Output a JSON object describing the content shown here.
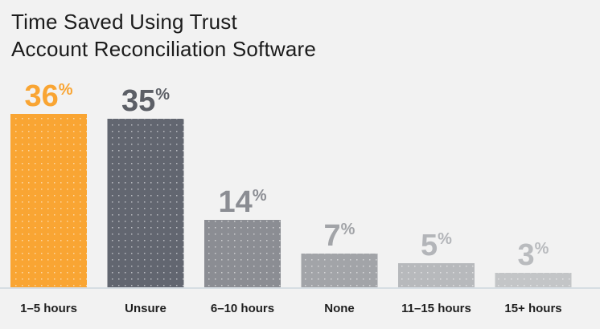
{
  "chart_data": {
    "type": "bar",
    "title_lines": [
      "Time Saved Using Trust",
      "Account Reconciliation Software"
    ],
    "categories": [
      "1–5 hours",
      "Unsure",
      "6–10 hours",
      "None",
      "11–15 hours",
      "15+ hours"
    ],
    "values": [
      36,
      35,
      14,
      7,
      5,
      3
    ],
    "value_suffix": "%",
    "colors": [
      "#f9a533",
      "#626670",
      "#8b8d93",
      "#a2a4a8",
      "#b7b9bc",
      "#c3c5c7"
    ],
    "label_colors": [
      "#f9a533",
      "#5c5f66",
      "#8b8d93",
      "#a2a4a8",
      "#b3b5b9",
      "#b9bbbe"
    ],
    "ylim": [
      0,
      36
    ],
    "grid": false,
    "legend": "none"
  }
}
